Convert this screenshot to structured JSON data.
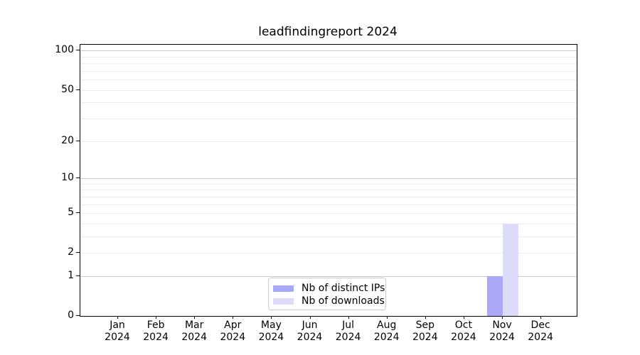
{
  "figure": {
    "background": "#ffffff",
    "spine_color": "#000000",
    "text_color": "#000000"
  },
  "chart_data": {
    "type": "bar",
    "title": "leadfindingreport 2024",
    "xlabel": "",
    "ylabel": "",
    "categories": [
      "Jan",
      "Feb",
      "Mar",
      "Apr",
      "May",
      "Jun",
      "Jul",
      "Aug",
      "Sep",
      "Oct",
      "Nov",
      "Dec"
    ],
    "category_year": "2024",
    "series": [
      {
        "name": "Nb of distinct IPs",
        "slug": "distinct-ips",
        "color": "#a9a9f8",
        "values": [
          0,
          0,
          0,
          0,
          0,
          0,
          0,
          0,
          0,
          0,
          1,
          0
        ]
      },
      {
        "name": "Nb of downloads",
        "slug": "downloads",
        "color": "#dcdcfa",
        "values": [
          0,
          0,
          0,
          0,
          0,
          0,
          0,
          0,
          0,
          0,
          4,
          0
        ]
      }
    ],
    "yscale": "log1p",
    "ylim": [
      0,
      111
    ],
    "y_ticks": [
      0,
      1,
      2,
      5,
      10,
      20,
      50,
      100
    ],
    "grid": {
      "minor_values": [
        2,
        3,
        4,
        5,
        6,
        7,
        8,
        9,
        20,
        30,
        40,
        50,
        60,
        70,
        80,
        90
      ],
      "major_values": [
        1,
        10,
        100
      ],
      "minor_color": "#ececec",
      "major_color": "#c9c9c9"
    },
    "legend": {
      "position": "lower center",
      "entries": [
        "Nb of distinct IPs",
        "Nb of downloads"
      ]
    }
  }
}
